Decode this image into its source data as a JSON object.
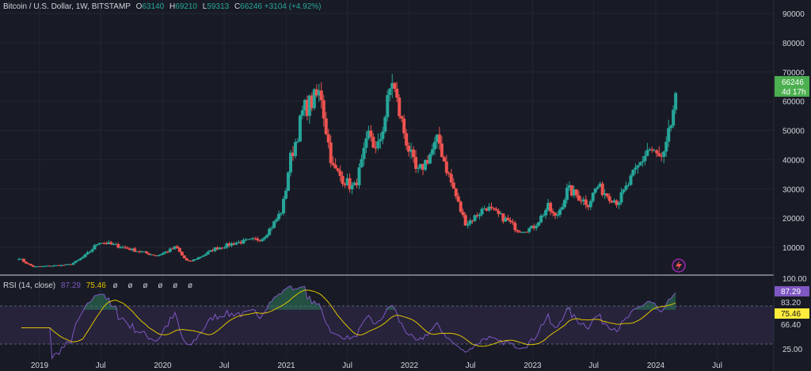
{
  "header": {
    "symbol": "Bitcoin / U.S. Dollar, 1W, BITSTAMP",
    "o_label": "O",
    "o_value": "63140",
    "h_label": "H",
    "h_value": "69210",
    "l_label": "L",
    "l_value": "59313",
    "c_label": "C",
    "c_value": "66246",
    "change": "+3104 (+4.92%)"
  },
  "price_axis": {
    "ticks": [
      "90000",
      "80000",
      "70000",
      "60000",
      "50000",
      "40000",
      "30000",
      "20000",
      "10000"
    ],
    "current_price": "66246",
    "countdown": "4d 17h"
  },
  "rsi": {
    "title": "RSI (14, close)",
    "value": "87.29",
    "ma_value": "75.46",
    "placeholders": "ø ø ø ø ø ø",
    "axis_top": "100.00",
    "axis_bottom": "25.00",
    "level_upper": "83.20",
    "level_lower": "66.40"
  },
  "time_axis": [
    "2019",
    "Jul",
    "2020",
    "Jul",
    "2021",
    "Jul",
    "2022",
    "Jul",
    "2023",
    "Jul",
    "2024",
    "Jul"
  ],
  "colors": {
    "background": "#181b25",
    "up": "#26a69a",
    "down": "#ef5350",
    "rsi_line": "#7e57c2",
    "rsi_ma": "#e0c400",
    "price_label": "#4caf50"
  },
  "chart_data": {
    "type": "candlestick",
    "interval": "1W",
    "ylim": [
      0,
      90000
    ],
    "keypoints": [
      [
        "2018-11-01",
        6400
      ],
      [
        "2018-12-15",
        3300
      ],
      [
        "2019-04-01",
        4100
      ],
      [
        "2019-06-25",
        12000
      ],
      [
        "2019-09-01",
        10200
      ],
      [
        "2019-12-15",
        7200
      ],
      [
        "2020-02-10",
        10200
      ],
      [
        "2020-03-16",
        5000
      ],
      [
        "2020-06-01",
        9500
      ],
      [
        "2020-08-01",
        11500
      ],
      [
        "2020-10-20",
        13000
      ],
      [
        "2020-12-20",
        23000
      ],
      [
        "2021-01-10",
        39000
      ],
      [
        "2021-02-20",
        57000
      ],
      [
        "2021-04-14",
        63000
      ],
      [
        "2021-05-20",
        37000
      ],
      [
        "2021-07-20",
        30000
      ],
      [
        "2021-09-05",
        50000
      ],
      [
        "2021-09-25",
        42000
      ],
      [
        "2021-11-10",
        68000
      ],
      [
        "2022-01-24",
        35000
      ],
      [
        "2022-03-28",
        47000
      ],
      [
        "2022-05-15",
        29000
      ],
      [
        "2022-06-18",
        18000
      ],
      [
        "2022-08-15",
        24000
      ],
      [
        "2022-10-20",
        19000
      ],
      [
        "2022-11-21",
        15800
      ],
      [
        "2022-12-31",
        16500
      ],
      [
        "2023-02-15",
        24000
      ],
      [
        "2023-03-10",
        20000
      ],
      [
        "2023-04-15",
        30000
      ],
      [
        "2023-06-15",
        25000
      ],
      [
        "2023-07-10",
        31000
      ],
      [
        "2023-09-10",
        25500
      ],
      [
        "2023-10-25",
        34500
      ],
      [
        "2023-12-10",
        44000
      ],
      [
        "2024-01-22",
        39500
      ],
      [
        "2024-02-15",
        52000
      ],
      [
        "2024-03-04",
        66246
      ]
    ]
  }
}
